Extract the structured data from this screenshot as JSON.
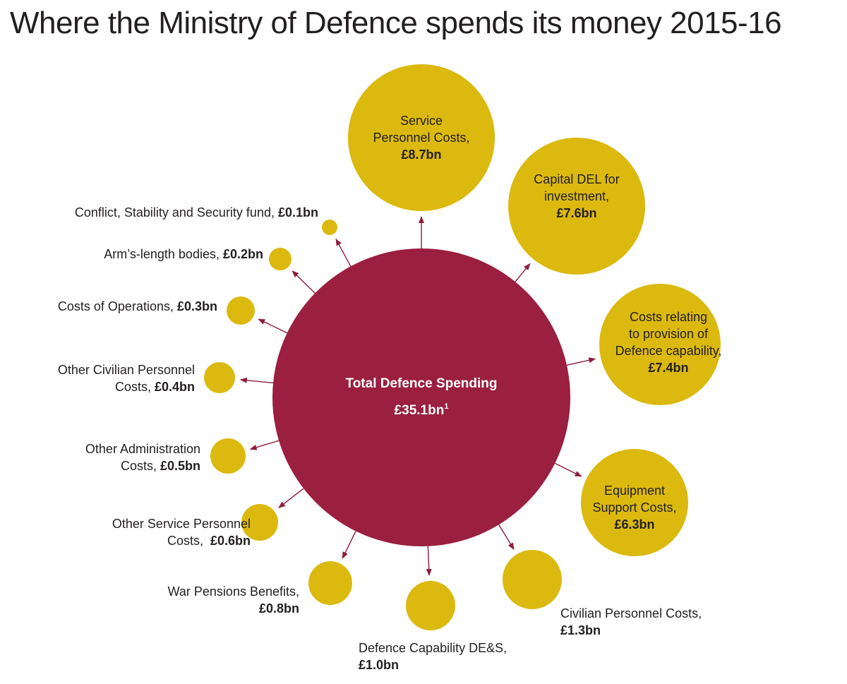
{
  "title": "Where the Ministry of Defence spends its money 2015-16",
  "colors": {
    "center": "#9b1f3f",
    "bubble": "#dbb90f",
    "arrow": "#8e1d3a"
  },
  "center": {
    "label": "Total Defence Spending",
    "value": "£35.1bn",
    "footnote": "1"
  },
  "items": [
    {
      "id": "service-personnel-costs",
      "label": "Service Personnel Costs,",
      "value": "£8.7bn",
      "amount_bn": 8.7
    },
    {
      "id": "capital-del-for-investment",
      "label": "Capital DEL for investment,",
      "value": "£7.6bn",
      "amount_bn": 7.6
    },
    {
      "id": "costs-relating-to-provision-of-defence-capability",
      "label": "Costs relating to provision of Defence capability,",
      "value": "£7.4bn",
      "amount_bn": 7.4
    },
    {
      "id": "equipment-support-costs",
      "label": "Equipment Support Costs,",
      "value": "£6.3bn",
      "amount_bn": 6.3
    },
    {
      "id": "civilian-personnel-costs",
      "label": "Civilian Personnel Costs,",
      "value": "£1.3bn",
      "amount_bn": 1.3
    },
    {
      "id": "defence-capability-des",
      "label": "Defence Capability DE&S,",
      "value": "£1.0bn",
      "amount_bn": 1.0
    },
    {
      "id": "war-pensions-benefits",
      "label": "War Pensions Benefits,",
      "value": "£0.8bn",
      "amount_bn": 0.8
    },
    {
      "id": "other-service-personnel-costs",
      "label": "Other Service Personnel Costs,",
      "value": "£0.6bn",
      "amount_bn": 0.6
    },
    {
      "id": "other-administration-costs",
      "label": "Other Administration Costs,",
      "value": "£0.5bn",
      "amount_bn": 0.5
    },
    {
      "id": "other-civilian-personnel-costs",
      "label": "Other Civilian Personnel Costs,",
      "value": "£0.4bn",
      "amount_bn": 0.4
    },
    {
      "id": "costs-of-operations",
      "label": "Costs of Operations,",
      "value": "£0.3bn",
      "amount_bn": 0.3
    },
    {
      "id": "arms-length-bodies",
      "label": "Arm’s-length bodies,",
      "value": "£0.2bn",
      "amount_bn": 0.2
    },
    {
      "id": "conflict-stability-and-security-fund",
      "label": "Conflict, Stability and Security fund,",
      "value": "£0.1bn",
      "amount_bn": 0.1
    }
  ]
}
